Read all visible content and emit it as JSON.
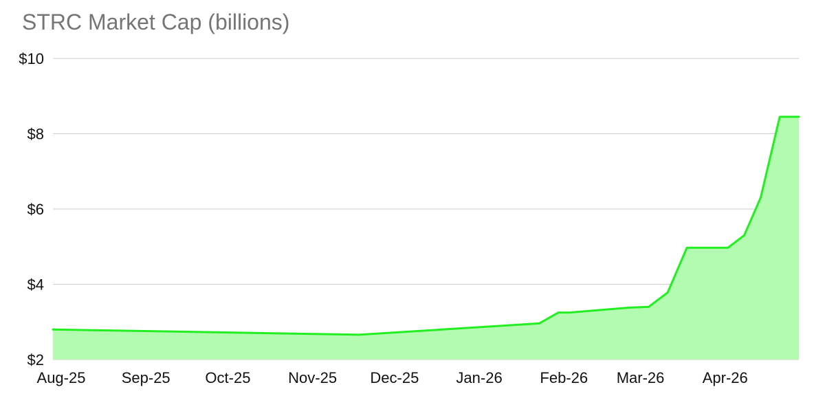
{
  "chart_data": {
    "type": "area",
    "title": "STRC Market Cap (billions)",
    "xlabel": "",
    "ylabel": "",
    "x_tick_labels": [
      "Aug-25",
      "Sep-25",
      "Oct-25",
      "Nov-25",
      "Dec-25",
      "Jan-26",
      "Feb-26",
      "Mar-26",
      "Apr-26"
    ],
    "y_tick_labels": [
      "$2",
      "$4",
      "$6",
      "$8",
      "$10"
    ],
    "y_ticks": [
      2,
      4,
      6,
      8,
      10
    ],
    "ylim": [
      2,
      10
    ],
    "xlim": [
      "2025-08-01",
      "2026-05-01"
    ],
    "grid": "horizontal",
    "legend": "none",
    "colors": {
      "line": "#22ee22",
      "fill": "#b3fbb0",
      "grid": "#cccccc",
      "title": "#757575"
    },
    "series": [
      {
        "x": [
          "2025-08-01",
          "2025-11-21",
          "2026-01-26",
          "2026-02-02",
          "2026-02-06",
          "2026-02-28",
          "2026-03-07",
          "2026-03-14",
          "2026-03-21",
          "2026-03-28",
          "2026-04-05",
          "2026-04-11",
          "2026-04-17",
          "2026-04-24",
          "2026-05-01"
        ],
        "values": [
          2.8,
          2.66,
          2.96,
          3.25,
          3.25,
          3.38,
          3.4,
          3.78,
          4.97,
          4.97,
          4.97,
          5.3,
          6.3,
          8.45,
          8.45
        ]
      }
    ]
  }
}
